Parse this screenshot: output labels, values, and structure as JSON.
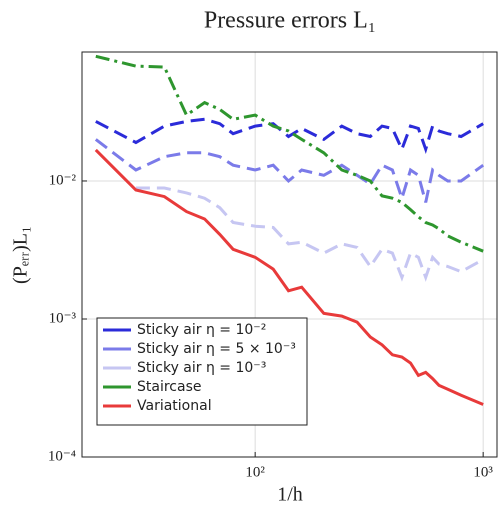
{
  "chart_data": {
    "type": "line",
    "title": "Pressure errors L₁",
    "xlabel": "1/h",
    "ylabel": "(Pₑᵣᵣ)L₁",
    "xscale": "log",
    "yscale": "log",
    "grid": true,
    "legend_position": "lower left",
    "xlim": [
      17.4,
      1150
    ],
    "ylim": [
      0.0001,
      0.086
    ],
    "xticks": [
      {
        "value": 100,
        "label": "10²"
      },
      {
        "value": 1000,
        "label": "10³"
      }
    ],
    "yticks": [
      {
        "value": 0.0001,
        "label": "10⁻⁴"
      },
      {
        "value": 0.001,
        "label": "10⁻³"
      },
      {
        "value": 0.01,
        "label": "10⁻²"
      }
    ],
    "x": [
      20,
      30,
      40,
      50,
      60,
      70,
      80,
      100,
      120,
      140,
      160,
      200,
      240,
      280,
      320,
      360,
      400,
      440,
      480,
      520,
      560,
      600,
      640,
      700,
      800,
      1000
    ],
    "series": [
      {
        "name": "Sticky air η = 10⁻²",
        "color": "#2b2bd9",
        "dash": "14,7",
        "values": [
          0.027,
          0.019,
          0.025,
          0.027,
          0.028,
          0.026,
          0.022,
          0.025,
          0.026,
          0.021,
          0.024,
          0.02,
          0.025,
          0.022,
          0.021,
          0.025,
          0.024,
          0.017,
          0.025,
          0.024,
          0.017,
          0.025,
          0.023,
          0.022,
          0.021,
          0.026
        ]
      },
      {
        "name": "Sticky air η = 5 × 10⁻³",
        "color": "#7b7be9",
        "dash": "14,7",
        "values": [
          0.02,
          0.012,
          0.015,
          0.016,
          0.016,
          0.015,
          0.013,
          0.012,
          0.013,
          0.01,
          0.012,
          0.011,
          0.013,
          0.011,
          0.0095,
          0.013,
          0.012,
          0.0075,
          0.012,
          0.011,
          0.007,
          0.012,
          0.011,
          0.01,
          0.01,
          0.013
        ]
      },
      {
        "name": "Sticky air η = 10⁻³",
        "color": "#c6c6f2",
        "dash": "14,7",
        "values": [
          null,
          0.0089,
          0.0089,
          0.0082,
          0.0075,
          0.0064,
          0.005,
          0.0047,
          0.0046,
          0.0035,
          0.0036,
          0.003,
          0.0035,
          0.0033,
          0.0024,
          0.0032,
          0.003,
          0.002,
          0.003,
          0.0028,
          0.002,
          0.0028,
          0.0025,
          0.0024,
          0.0022,
          0.0027
        ]
      },
      {
        "name": "Staircase",
        "color": "#2e962e",
        "dash": "14,5,3,5",
        "values": [
          0.08,
          0.068,
          0.067,
          0.03,
          0.037,
          0.033,
          0.028,
          0.03,
          0.025,
          0.023,
          0.02,
          0.016,
          0.012,
          0.011,
          0.01,
          0.0078,
          0.0075,
          0.007,
          0.0062,
          0.0055,
          0.005,
          0.0048,
          0.0045,
          0.004,
          0.0036,
          0.0031
        ]
      },
      {
        "name": "Variational",
        "color": "#e83a3a",
        "dash": "none",
        "values": [
          0.0168,
          0.0086,
          0.0077,
          0.006,
          0.0053,
          0.0041,
          0.0032,
          0.0028,
          0.0023,
          0.0016,
          0.0017,
          0.0011,
          0.00105,
          0.00095,
          0.00074,
          0.00065,
          0.00055,
          0.00053,
          0.00048,
          0.00039,
          0.00041,
          0.00037,
          0.00033,
          0.00031,
          0.00028,
          0.00024
        ]
      }
    ]
  }
}
